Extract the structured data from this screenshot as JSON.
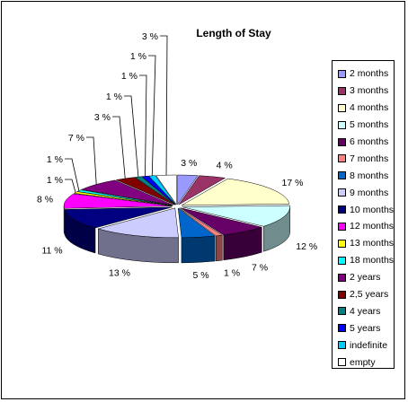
{
  "chart_data": {
    "type": "pie",
    "title": "Length of Stay",
    "categories": [
      "2 months",
      "3 months",
      "4 months",
      "5 months",
      "6 months",
      "7 months",
      "8 months",
      "9 months",
      "10 months",
      "12 months",
      "13 months",
      "18 months",
      "2 years",
      "2,5 years",
      "4 years",
      "5 years",
      "indefinite",
      "empty"
    ],
    "values": [
      3,
      4,
      17,
      12,
      7,
      1,
      5,
      13,
      11,
      8,
      1,
      1,
      7,
      3,
      1,
      1,
      1,
      3
    ],
    "value_labels": [
      "3 %",
      "4 %",
      "17 %",
      "12 %",
      "7 %",
      "1 %",
      "5 %",
      "13 %",
      "11 %",
      "8 %",
      "1 %",
      "1 %",
      "7 %",
      "3 %",
      "1 %",
      "1 %",
      "1 %",
      "3 %"
    ],
    "colors": [
      "#9999FF",
      "#993366",
      "#FFFFCC",
      "#CCFFFF",
      "#660066",
      "#FF8080",
      "#0066CC",
      "#CCCCFF",
      "#000080",
      "#FF00FF",
      "#FFFF00",
      "#00FFFF",
      "#800080",
      "#800000",
      "#008080",
      "#0000FF",
      "#00CCFF",
      "#FFFFFF"
    ],
    "legend_position": "right",
    "style": "3d-exploded"
  }
}
